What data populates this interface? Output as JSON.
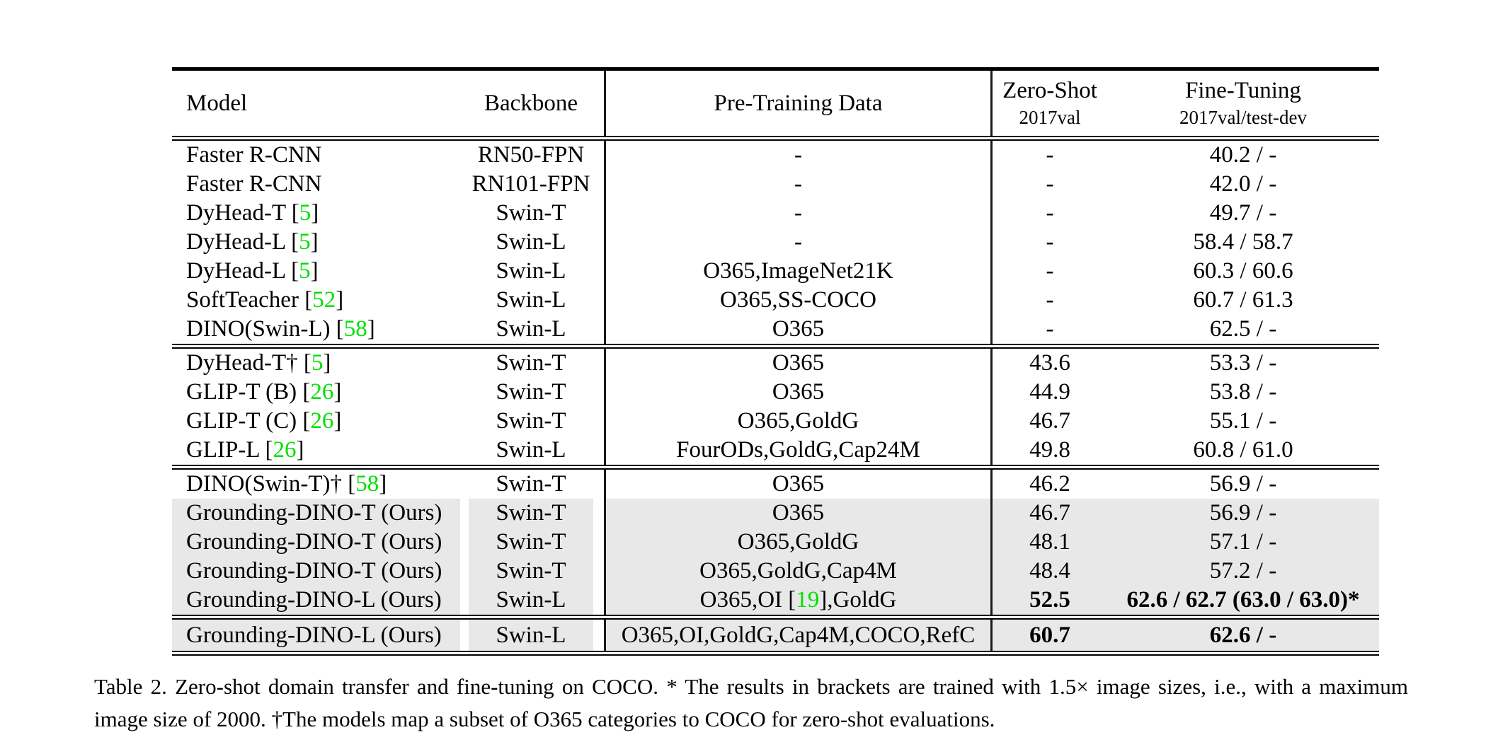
{
  "table": {
    "header": {
      "model": "Model",
      "backbone": "Backbone",
      "pretraining": "Pre-Training Data",
      "zeroshot_title": "Zero-Shot",
      "zeroshot_sub": "2017val",
      "finetuning_title": "Fine-Tuning",
      "finetuning_sub": "2017val/test-dev"
    },
    "blocks": [
      {
        "rows": [
          {
            "model": "Faster R-CNN",
            "backbone": "RN50-FPN",
            "pretraining": "-",
            "zeroshot": "-",
            "finetuning": "40.2 / -",
            "highlight": false,
            "bold": false
          },
          {
            "model": "Faster R-CNN",
            "backbone": "RN101-FPN",
            "pretraining": "-",
            "zeroshot": "-",
            "finetuning": "42.0 / -",
            "highlight": false,
            "bold": false
          },
          {
            "model": "DyHead-T [[5]]",
            "backbone": "Swin-T",
            "pretraining": "-",
            "zeroshot": "-",
            "finetuning": "49.7 / -",
            "highlight": false,
            "bold": false
          },
          {
            "model": "DyHead-L [[5]]",
            "backbone": "Swin-L",
            "pretraining": "-",
            "zeroshot": "-",
            "finetuning": "58.4 / 58.7",
            "highlight": false,
            "bold": false
          },
          {
            "model": "DyHead-L [[5]]",
            "backbone": "Swin-L",
            "pretraining": "O365,ImageNet21K",
            "zeroshot": "-",
            "finetuning": "60.3 / 60.6",
            "highlight": false,
            "bold": false
          },
          {
            "model": "SoftTeacher [[52]]",
            "backbone": "Swin-L",
            "pretraining": "O365,SS-COCO",
            "zeroshot": "-",
            "finetuning": "60.7 / 61.3",
            "highlight": false,
            "bold": false
          },
          {
            "model": "DINO(Swin-L) [[58]]",
            "backbone": "Swin-L",
            "pretraining": "O365",
            "zeroshot": "-",
            "finetuning": "62.5 / -",
            "highlight": false,
            "bold": false
          }
        ]
      },
      {
        "rows": [
          {
            "model": "DyHead-T† [[5]]",
            "backbone": "Swin-T",
            "pretraining": "O365",
            "zeroshot": "43.6",
            "finetuning": "53.3 / -",
            "highlight": false,
            "bold": false
          },
          {
            "model": "GLIP-T (B) [[26]]",
            "backbone": "Swin-T",
            "pretraining": "O365",
            "zeroshot": "44.9",
            "finetuning": "53.8 / -",
            "highlight": false,
            "bold": false
          },
          {
            "model": "GLIP-T (C) [[26]]",
            "backbone": "Swin-T",
            "pretraining": "O365,GoldG",
            "zeroshot": "46.7",
            "finetuning": "55.1 / -",
            "highlight": false,
            "bold": false
          },
          {
            "model": "GLIP-L [[26]]",
            "backbone": "Swin-L",
            "pretraining": "FourODs,GoldG,Cap24M",
            "zeroshot": "49.8",
            "finetuning": "60.8 / 61.0",
            "highlight": false,
            "bold": false
          }
        ]
      },
      {
        "rows": [
          {
            "model": "DINO(Swin-T)† [[58]]",
            "backbone": "Swin-T",
            "pretraining": "O365",
            "zeroshot": "46.2",
            "finetuning": "56.9 / -",
            "highlight": false,
            "bold": false
          },
          {
            "model": "Grounding-DINO-T (Ours)",
            "backbone": "Swin-T",
            "pretraining": "O365",
            "zeroshot": "46.7",
            "finetuning": "56.9 / -",
            "highlight": true,
            "bold": false
          },
          {
            "model": "Grounding-DINO-T (Ours)",
            "backbone": "Swin-T",
            "pretraining": "O365,GoldG",
            "zeroshot": "48.1",
            "finetuning": "57.1 / -",
            "highlight": true,
            "bold": false
          },
          {
            "model": "Grounding-DINO-T (Ours)",
            "backbone": "Swin-T",
            "pretraining": "O365,GoldG,Cap4M",
            "zeroshot": "48.4",
            "finetuning": "57.2 / -",
            "highlight": true,
            "bold": false
          },
          {
            "model": "Grounding-DINO-L (Ours)",
            "backbone": "Swin-L",
            "pretraining": "O365,OI [[19]],GoldG",
            "zeroshot": "52.5",
            "finetuning": "62.6 / 62.7 (63.0 / 63.0)*",
            "highlight": true,
            "bold": true
          }
        ]
      },
      {
        "rows": [
          {
            "model": "Grounding-DINO-L (Ours)",
            "backbone": "Swin-L",
            "pretraining": "O365,OI,GoldG,Cap4M,COCO,RefC",
            "zeroshot": "60.7",
            "finetuning": "62.6 / -",
            "highlight": true,
            "bold": true,
            "tall": true
          }
        ]
      }
    ]
  },
  "caption": {
    "text": "Table 2.  Zero-shot domain transfer and fine-tuning on COCO. * The results in brackets are trained with 1.5× image sizes, i.e., with a maximum image size of 2000. †The models map a subset of O365 categories to COCO for zero-shot evaluations."
  },
  "colors": {
    "citation_green": "#00e000",
    "row_highlight": "#e8e8e8",
    "rule_black": "#000000"
  }
}
